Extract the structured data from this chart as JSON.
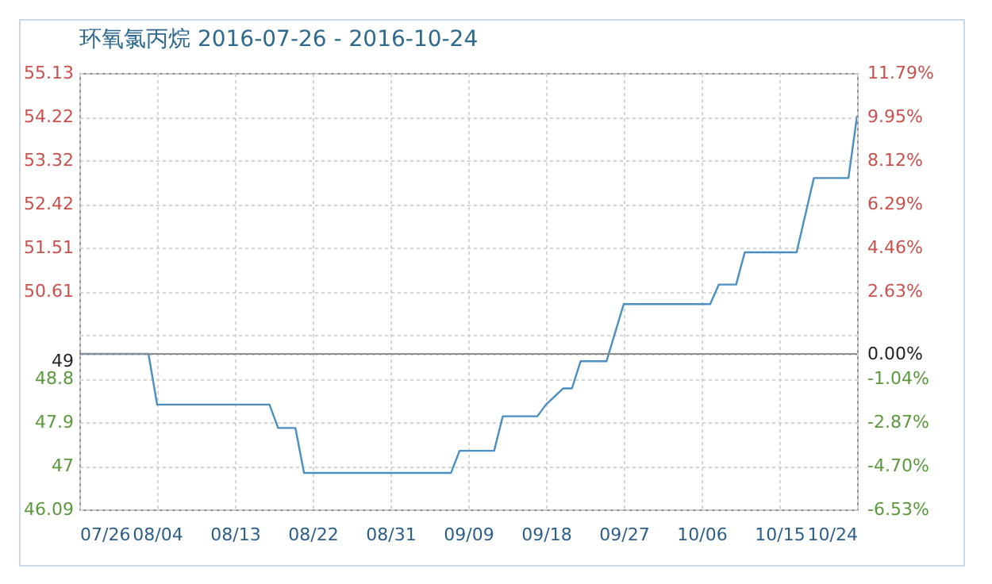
{
  "chart_data": {
    "type": "step",
    "title": "环氧氯丙烷 2016-07-26 - 2016-10-24",
    "x": [
      "2016-07-26",
      "2016-08-03",
      "2016-08-04",
      "2016-08-17",
      "2016-08-18",
      "2016-08-20",
      "2016-08-21",
      "2016-09-07",
      "2016-09-08",
      "2016-09-12",
      "2016-09-13",
      "2016-09-17",
      "2016-09-18",
      "2016-09-20",
      "2016-09-21",
      "2016-09-22",
      "2016-09-25",
      "2016-09-27",
      "2016-10-07",
      "2016-10-08",
      "2016-10-10",
      "2016-10-11",
      "2016-10-17",
      "2016-10-19",
      "2016-10-23",
      "2016-10-24"
    ],
    "series": [
      {
        "color": "#4a8fbf",
        "axis": "y2",
        "values": [
          0,
          0,
          -2.13,
          -2.13,
          -3.11,
          -3.11,
          -5.0,
          -5.0,
          -4.07,
          -4.07,
          -2.62,
          -2.62,
          -2.13,
          -1.45,
          -1.45,
          -0.31,
          -0.31,
          2.09,
          2.09,
          2.91,
          2.91,
          4.26,
          4.26,
          7.38,
          7.38,
          9.99
        ]
      }
    ],
    "xlim": [
      "2016-07-26",
      "2016-10-24"
    ],
    "xticks": [
      {
        "value": "2016-07-26",
        "label": "07/26"
      },
      {
        "value": "2016-08-04",
        "label": "08/04"
      },
      {
        "value": "2016-08-13",
        "label": "08/13"
      },
      {
        "value": "2016-08-22",
        "label": "08/22"
      },
      {
        "value": "2016-08-31",
        "label": "08/31"
      },
      {
        "value": "2016-09-09",
        "label": "09/09"
      },
      {
        "value": "2016-09-18",
        "label": "09/18"
      },
      {
        "value": "2016-09-27",
        "label": "09/27"
      },
      {
        "value": "2016-10-06",
        "label": "10/06"
      },
      {
        "value": "2016-10-15",
        "label": "10/15"
      },
      {
        "value": "2016-10-24",
        "label": "10/24"
      }
    ],
    "ylim": [
      46.09,
      55.13
    ],
    "yticks": [
      46.09,
      47,
      47.9,
      48.8,
      49,
      50.61,
      51.51,
      52.42,
      53.32,
      54.22,
      55.13
    ],
    "y2lim": [
      -6.53,
      11.79
    ],
    "y2ticks": [
      {
        "value": -6.53,
        "label": "-6.53%"
      },
      {
        "value": -4.7,
        "label": "-4.70%"
      },
      {
        "value": -2.87,
        "label": "-2.87%"
      },
      {
        "value": -1.04,
        "label": "-1.04%"
      },
      {
        "value": 0,
        "label": "0.00%"
      },
      {
        "value": 0.79,
        "label": null
      },
      {
        "value": 2.63,
        "label": "2.63%"
      },
      {
        "value": 4.46,
        "label": "4.46%"
      },
      {
        "value": 6.29,
        "label": "6.29%"
      },
      {
        "value": 8.12,
        "label": "8.12%"
      },
      {
        "value": 9.95,
        "label": "9.95%"
      },
      {
        "value": 11.79,
        "label": "11.79%"
      }
    ],
    "ref_lines": [
      {
        "axis": "y2",
        "value": 0,
        "color": "#8c8c8c"
      }
    ],
    "grid": true
  }
}
